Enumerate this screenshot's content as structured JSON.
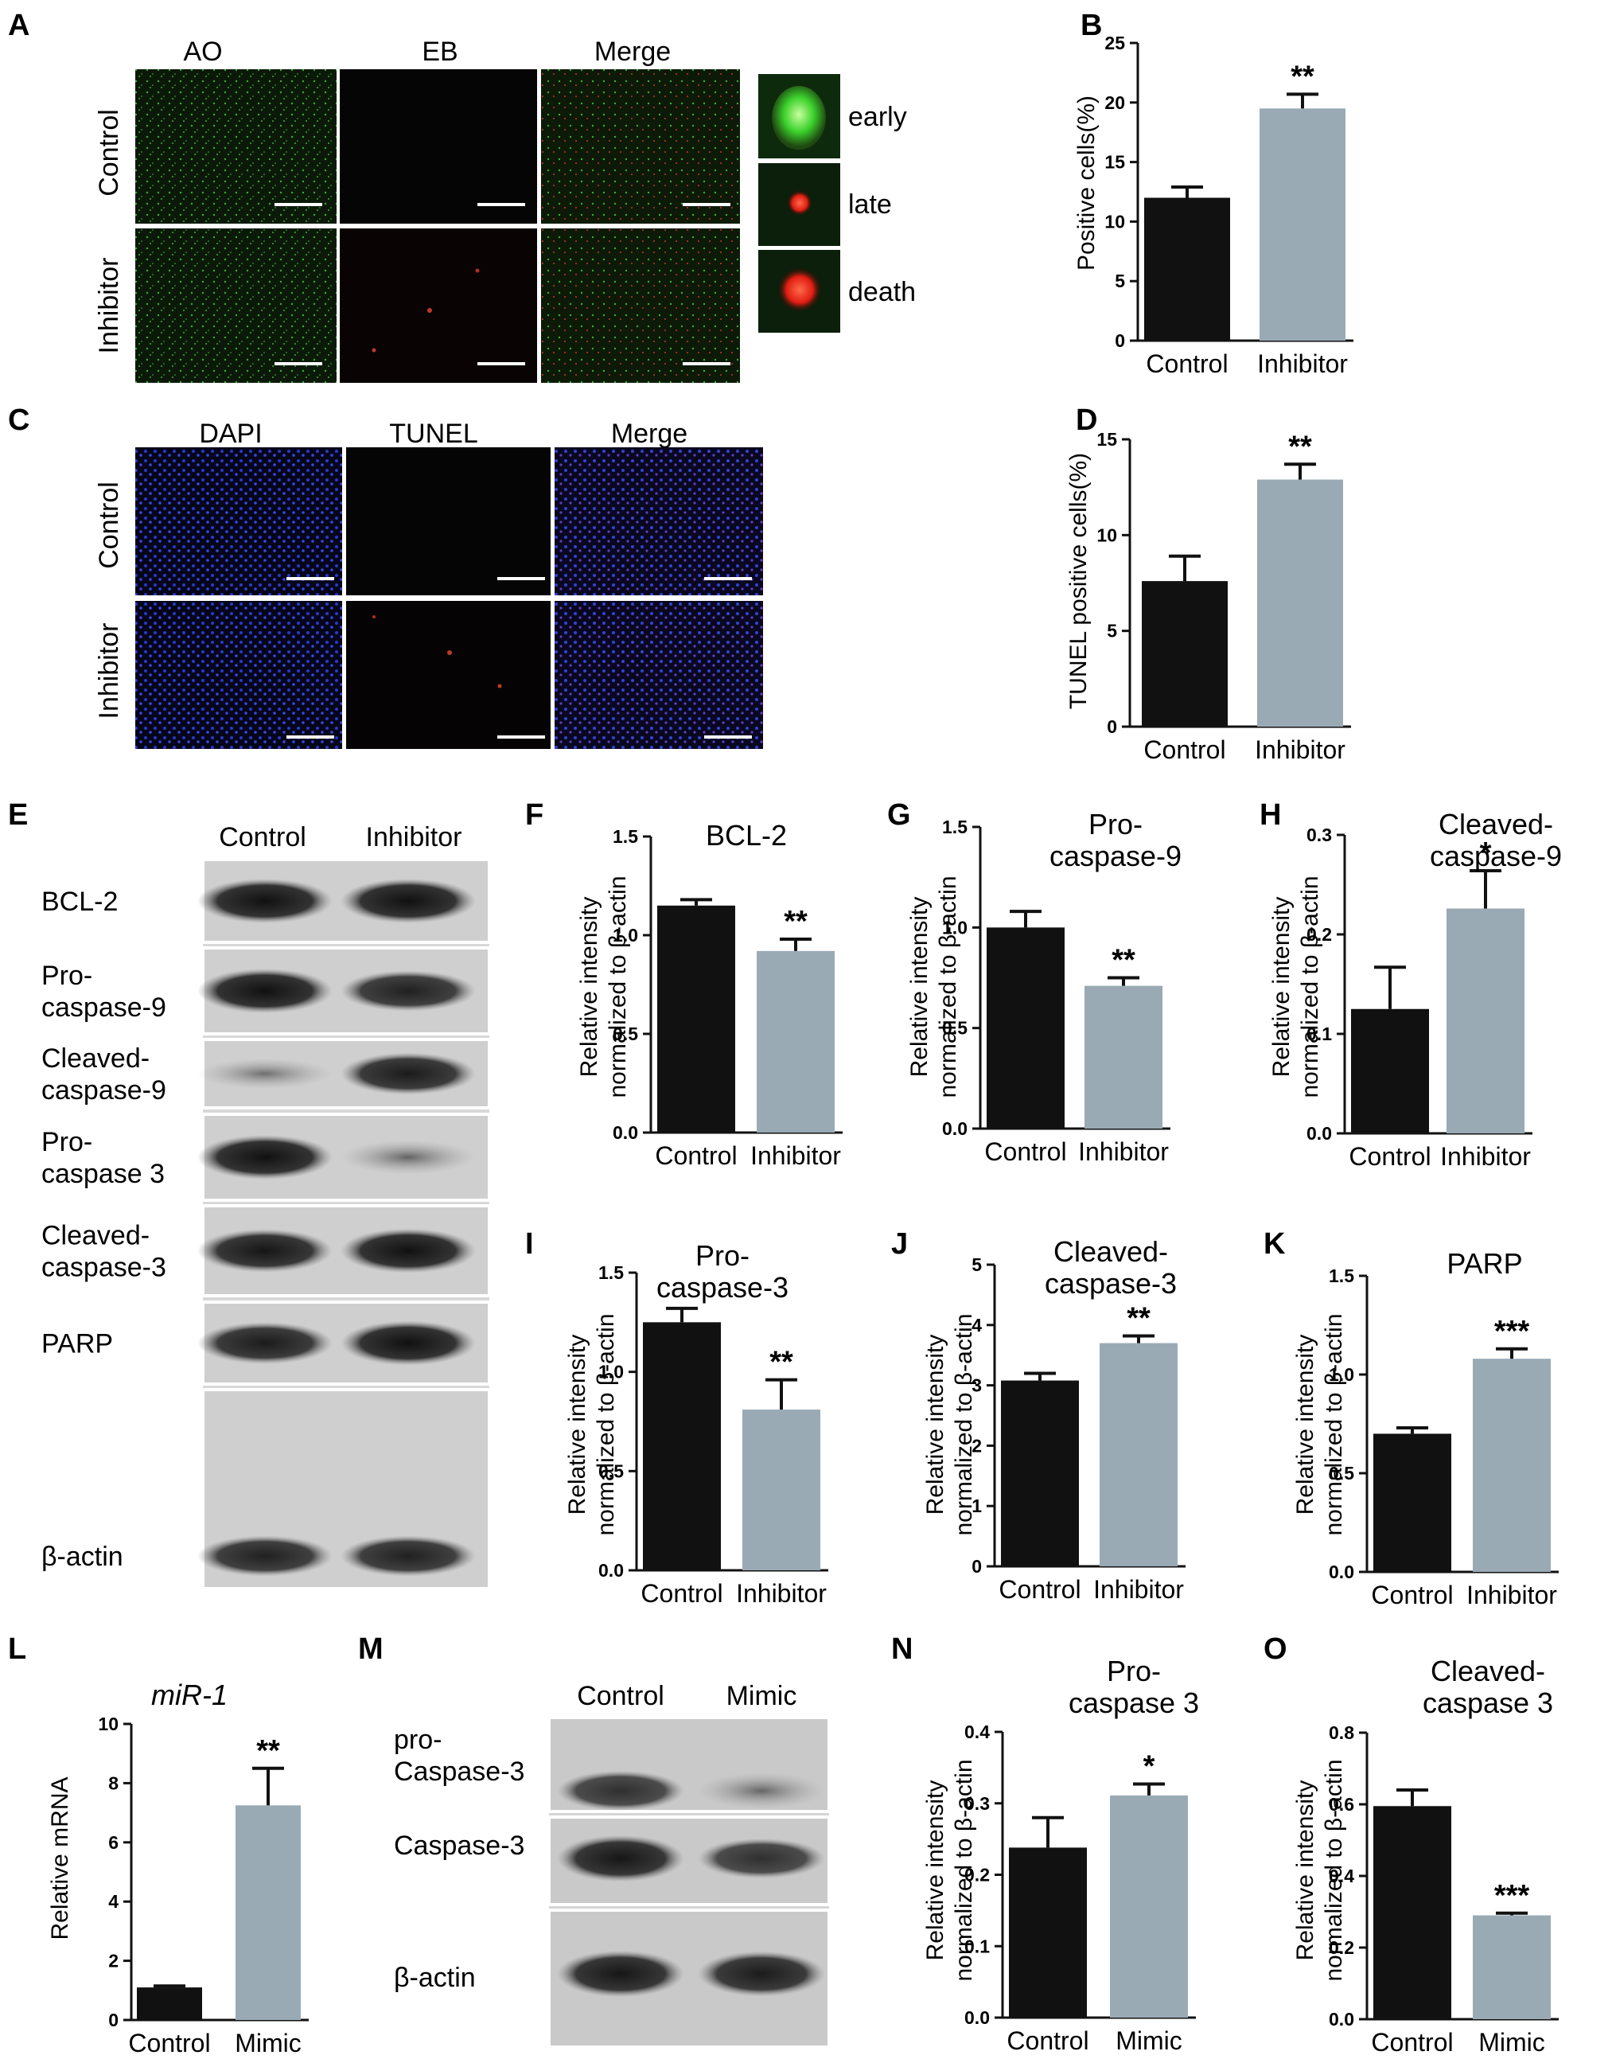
{
  "panels": {
    "A": {
      "label": "A",
      "columns": [
        "AO",
        "EB",
        "Merge"
      ],
      "rows": [
        "Control",
        "Inhibitor"
      ],
      "insets": [
        "early",
        "late",
        "death"
      ]
    },
    "C": {
      "label": "C",
      "columns": [
        "DAPI",
        "TUNEL",
        "Merge"
      ],
      "rows": [
        "Control",
        "Inhibitor"
      ]
    },
    "E": {
      "label": "E",
      "columns": [
        "Control",
        "Inhibitor"
      ],
      "bands": [
        "BCL-2",
        "Pro-\ncaspase-9",
        "Cleaved-\ncaspase-9",
        "Pro-\ncaspase 3",
        "Cleaved-\ncaspase-3",
        "PARP",
        "β-actin"
      ]
    },
    "M": {
      "label": "M",
      "columns": [
        "Control",
        "Mimic"
      ],
      "bands": [
        "pro-\nCaspase-3",
        "Caspase-3",
        "β-actin"
      ]
    }
  },
  "colors": {
    "control_bar": "#111111",
    "treatment_bar": "#9aaab5",
    "axis": "#111111"
  },
  "chart_data": [
    {
      "id": "B",
      "type": "bar",
      "title": "",
      "ylabel": "Positive cells(%)",
      "categories": [
        "Control",
        "Inhibitor"
      ],
      "values": [
        12.0,
        19.5
      ],
      "errors": [
        0.9,
        1.2
      ],
      "ylim": [
        0,
        25
      ],
      "yticks": [
        0,
        5,
        10,
        15,
        20,
        25
      ],
      "sig": [
        "",
        "**"
      ]
    },
    {
      "id": "D",
      "type": "bar",
      "title": "",
      "ylabel": "TUNEL positive cells(%)",
      "categories": [
        "Control",
        "Inhibitor"
      ],
      "values": [
        7.6,
        12.9
      ],
      "errors": [
        1.3,
        0.8
      ],
      "ylim": [
        0,
        15
      ],
      "yticks": [
        0,
        5,
        10,
        15
      ],
      "sig": [
        "",
        "**"
      ]
    },
    {
      "id": "F",
      "type": "bar",
      "title": "BCL-2",
      "ylabel": "Relative intensity\nnormalized to β-actin",
      "categories": [
        "Control",
        "Inhibitor"
      ],
      "values": [
        1.15,
        0.92
      ],
      "errors": [
        0.03,
        0.06
      ],
      "ylim": [
        0,
        1.5
      ],
      "yticks": [
        0.0,
        0.5,
        1.0,
        1.5
      ],
      "sig": [
        "",
        "**"
      ]
    },
    {
      "id": "G",
      "type": "bar",
      "title": "Pro-\ncaspase-9",
      "ylabel": "Relative intensity\nnormalized to β-actin",
      "categories": [
        "Control",
        "Inhibitor"
      ],
      "values": [
        1.0,
        0.71
      ],
      "errors": [
        0.08,
        0.04
      ],
      "ylim": [
        0,
        1.5
      ],
      "yticks": [
        0.0,
        0.5,
        1.0,
        1.5
      ],
      "sig": [
        "",
        "**"
      ]
    },
    {
      "id": "H",
      "type": "bar",
      "title": "Cleaved-\ncaspase-9",
      "ylabel": "Relative intensity\nnormalized to β-actin",
      "categories": [
        "Control",
        "Inhibitor"
      ],
      "values": [
        0.125,
        0.226
      ],
      "errors": [
        0.042,
        0.038
      ],
      "ylim": [
        0,
        0.3
      ],
      "yticks": [
        0.0,
        0.1,
        0.2,
        0.3
      ],
      "sig": [
        "",
        "*"
      ]
    },
    {
      "id": "I",
      "type": "bar",
      "title": "Pro-\ncaspase-3",
      "ylabel": "Relative intensity\nnormalized to β-actin",
      "categories": [
        "Control",
        "Inhibitor"
      ],
      "values": [
        1.25,
        0.81
      ],
      "errors": [
        0.07,
        0.15
      ],
      "ylim": [
        0,
        1.5
      ],
      "yticks": [
        0.0,
        0.5,
        1.0,
        1.5
      ],
      "sig": [
        "",
        "**"
      ]
    },
    {
      "id": "J",
      "type": "bar",
      "title": "Cleaved-\ncaspase-3",
      "ylabel": "Relative intensity\nnormalized to β-actin",
      "categories": [
        "Control",
        "Inhibitor"
      ],
      "values": [
        3.08,
        3.7
      ],
      "errors": [
        0.12,
        0.12
      ],
      "ylim": [
        0,
        5
      ],
      "yticks": [
        0,
        1,
        2,
        3,
        4,
        5
      ],
      "sig": [
        "",
        "**"
      ]
    },
    {
      "id": "K",
      "type": "bar",
      "title": "PARP",
      "ylabel": "Relative intensity\nnormalized to β-actin",
      "categories": [
        "Control",
        "Inhibitor"
      ],
      "values": [
        0.7,
        1.08
      ],
      "errors": [
        0.03,
        0.05
      ],
      "ylim": [
        0,
        1.5
      ],
      "yticks": [
        0.0,
        0.5,
        1.0,
        1.5
      ],
      "sig": [
        "",
        "***"
      ]
    },
    {
      "id": "L",
      "type": "bar",
      "title": "miR-1",
      "title_italic": true,
      "ylabel": "Relative mRNA",
      "categories": [
        "Control",
        "Mimic"
      ],
      "values": [
        1.1,
        7.25
      ],
      "errors": [
        0.05,
        1.25
      ],
      "ylim": [
        0,
        10
      ],
      "yticks": [
        0,
        2,
        4,
        6,
        8,
        10
      ],
      "sig": [
        "",
        "**"
      ]
    },
    {
      "id": "N",
      "type": "bar",
      "title": "Pro-\ncaspase 3",
      "ylabel": "Relative intensity\nnormalized to β-actin",
      "categories": [
        "Control",
        "Mimic"
      ],
      "values": [
        0.238,
        0.311
      ],
      "errors": [
        0.042,
        0.016
      ],
      "ylim": [
        0,
        0.4
      ],
      "yticks": [
        0.0,
        0.1,
        0.2,
        0.3,
        0.4
      ],
      "sig": [
        "",
        "*"
      ]
    },
    {
      "id": "O",
      "type": "bar",
      "title": "Cleaved-\ncaspase 3",
      "ylabel": "Relative intensity\nnormalized to β-actin",
      "categories": [
        "Control",
        "Mimic"
      ],
      "values": [
        0.595,
        0.29
      ],
      "errors": [
        0.045,
        0.006
      ],
      "ylim": [
        0,
        0.8
      ],
      "yticks": [
        0.0,
        0.2,
        0.4,
        0.6,
        0.8
      ],
      "sig": [
        "",
        "***"
      ]
    }
  ]
}
